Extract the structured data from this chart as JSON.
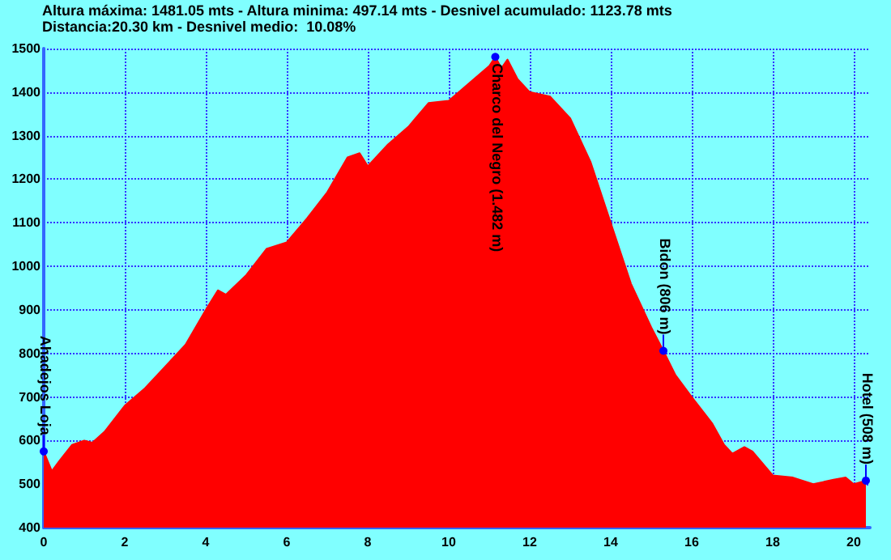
{
  "chart_data": {
    "type": "area",
    "title": "Altura máxima: 1481.05 mts - Altura minima: 497.14 mts - Desnivel acumulado: 1123.78 mts",
    "subtitle": "Distancia:20.30 km - Desnivel medio:  10.08%",
    "x": [
      0,
      0.2,
      0.4,
      0.7,
      1.0,
      1.2,
      1.5,
      2,
      2.5,
      3,
      3.5,
      4,
      4.3,
      4.5,
      5,
      5.5,
      6,
      6.5,
      7,
      7.5,
      7.8,
      8,
      8.5,
      9,
      9.5,
      10,
      10.5,
      11,
      11.15,
      11.3,
      11.45,
      11.7,
      12,
      12.5,
      13,
      13.5,
      14,
      14.5,
      15,
      15.3,
      15.6,
      16,
      16.5,
      16.8,
      17,
      17.3,
      17.5,
      18,
      18.5,
      19,
      19.5,
      19.8,
      20,
      20.3
    ],
    "series": [
      {
        "color": "#ff0000",
        "values": [
          575,
          530,
          555,
          590,
          600,
          595,
          620,
          680,
          720,
          770,
          820,
          900,
          945,
          935,
          980,
          1040,
          1055,
          1110,
          1170,
          1250,
          1260,
          1230,
          1280,
          1320,
          1375,
          1380,
          1420,
          1460,
          1481,
          1455,
          1475,
          1430,
          1400,
          1390,
          1340,
          1240,
          1100,
          960,
          860,
          806,
          750,
          700,
          640,
          590,
          570,
          585,
          575,
          520,
          515,
          500,
          510,
          515,
          500,
          508
        ]
      }
    ],
    "xlim": [
      0,
      20.4
    ],
    "xticks": [
      0,
      2,
      4,
      6,
      8,
      10,
      12,
      14,
      16,
      18,
      20
    ],
    "ylim": [
      400,
      1500
    ],
    "yticks": [
      400,
      500,
      600,
      700,
      800,
      900,
      1000,
      1100,
      1200,
      1300,
      1400,
      1500
    ],
    "grid": true,
    "marker": "none",
    "annotations": [
      {
        "text": "Ahadejos Loja",
        "x": 0,
        "y": 575
      },
      {
        "text": "Charco del Negro (1.482 m)",
        "x": 11.15,
        "y": 1481
      },
      {
        "text": "Bidon (806 m)",
        "x": 15.3,
        "y": 806
      },
      {
        "text": "Hotel (508 m)",
        "x": 20.3,
        "y": 508
      }
    ]
  }
}
